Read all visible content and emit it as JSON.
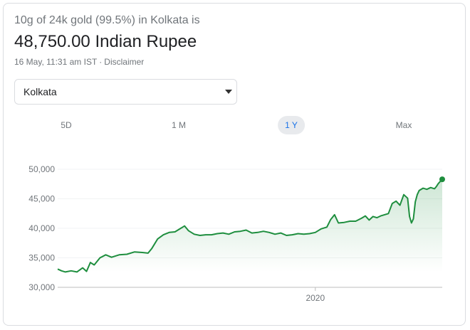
{
  "header": {
    "subtitle": "10g of 24k gold (99.5%) in Kolkata is",
    "price": "48,750.00 Indian Rupee",
    "timestamp": "16 May, 11:31 am IST",
    "separator": "·",
    "disclaimer": "Disclaimer"
  },
  "location_select": {
    "selected": "Kolkata",
    "icon": "dropdown-caret"
  },
  "range_tabs": [
    {
      "label": "5D",
      "active": false
    },
    {
      "label": "1 M",
      "active": false
    },
    {
      "label": "1 Y",
      "active": true
    },
    {
      "label": "Max",
      "active": false
    }
  ],
  "colors": {
    "line": "#1e8e3e",
    "accent": "#1a73e8",
    "muted": "#70757a"
  },
  "chart_data": {
    "type": "area",
    "title": "",
    "xlabel": "",
    "ylabel": "",
    "ylim": [
      30000,
      50000
    ],
    "yticks": [
      "50,000",
      "45,000",
      "40,000",
      "35,000",
      "30,000"
    ],
    "ytick_values": [
      50000,
      45000,
      40000,
      35000,
      30000
    ],
    "xticks": [
      {
        "label": "2020",
        "value": 0.67
      }
    ],
    "grid": "horizontal",
    "series": [
      {
        "points": [
          [
            0.0,
            33100
          ],
          [
            0.01,
            32800
          ],
          [
            0.02,
            32600
          ],
          [
            0.035,
            32800
          ],
          [
            0.05,
            32600
          ],
          [
            0.065,
            33300
          ],
          [
            0.075,
            32700
          ],
          [
            0.085,
            34200
          ],
          [
            0.095,
            33800
          ],
          [
            0.11,
            35000
          ],
          [
            0.125,
            35500
          ],
          [
            0.14,
            35100
          ],
          [
            0.16,
            35500
          ],
          [
            0.18,
            35600
          ],
          [
            0.2,
            36000
          ],
          [
            0.22,
            35900
          ],
          [
            0.235,
            35800
          ],
          [
            0.245,
            36600
          ],
          [
            0.26,
            38200
          ],
          [
            0.275,
            38900
          ],
          [
            0.29,
            39300
          ],
          [
            0.305,
            39400
          ],
          [
            0.32,
            40000
          ],
          [
            0.33,
            40400
          ],
          [
            0.34,
            39600
          ],
          [
            0.355,
            39000
          ],
          [
            0.37,
            38800
          ],
          [
            0.385,
            38900
          ],
          [
            0.4,
            38900
          ],
          [
            0.415,
            39100
          ],
          [
            0.43,
            39200
          ],
          [
            0.445,
            39000
          ],
          [
            0.46,
            39400
          ],
          [
            0.475,
            39500
          ],
          [
            0.49,
            39700
          ],
          [
            0.505,
            39200
          ],
          [
            0.52,
            39300
          ],
          [
            0.535,
            39500
          ],
          [
            0.55,
            39300
          ],
          [
            0.565,
            39000
          ],
          [
            0.58,
            39200
          ],
          [
            0.595,
            38800
          ],
          [
            0.61,
            38900
          ],
          [
            0.625,
            39100
          ],
          [
            0.64,
            39000
          ],
          [
            0.655,
            39100
          ],
          [
            0.67,
            39300
          ],
          [
            0.685,
            39900
          ],
          [
            0.7,
            40200
          ],
          [
            0.71,
            41500
          ],
          [
            0.72,
            42300
          ],
          [
            0.73,
            40900
          ],
          [
            0.745,
            41000
          ],
          [
            0.76,
            41200
          ],
          [
            0.775,
            41200
          ],
          [
            0.79,
            41700
          ],
          [
            0.8,
            42100
          ],
          [
            0.81,
            41400
          ],
          [
            0.82,
            42000
          ],
          [
            0.83,
            41800
          ],
          [
            0.84,
            42100
          ],
          [
            0.85,
            42300
          ],
          [
            0.86,
            42500
          ],
          [
            0.87,
            44200
          ],
          [
            0.88,
            44600
          ],
          [
            0.89,
            43900
          ],
          [
            0.9,
            45700
          ],
          [
            0.91,
            45100
          ],
          [
            0.915,
            42000
          ],
          [
            0.92,
            40900
          ],
          [
            0.925,
            41600
          ],
          [
            0.93,
            44500
          ],
          [
            0.935,
            45700
          ],
          [
            0.94,
            46400
          ],
          [
            0.95,
            46800
          ],
          [
            0.96,
            46600
          ],
          [
            0.97,
            46900
          ],
          [
            0.98,
            46700
          ],
          [
            0.985,
            47100
          ],
          [
            0.99,
            47600
          ],
          [
            1.0,
            48300
          ]
        ]
      }
    ]
  }
}
